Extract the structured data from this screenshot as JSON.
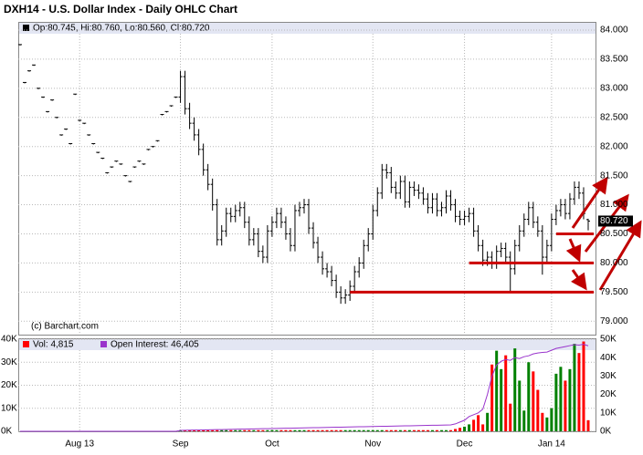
{
  "chart_data": [
    {
      "type": "ohlc",
      "title": "DXH14 - U.S. Dollar Index - Daily OHLC Chart",
      "legend": "Op:80.745, Hi:80.760, Lo:80.560, Cl:80.720",
      "copyright": "(c) Barchart.com",
      "last_label": "80.720",
      "color": "#000000",
      "grid": true,
      "categories": [
        null,
        null,
        null,
        null,
        null,
        null,
        null,
        null,
        null,
        null,
        null,
        null,
        null,
        "Aug 13",
        null,
        null,
        null,
        null,
        null,
        null,
        null,
        null,
        null,
        null,
        null,
        null,
        null,
        null,
        null,
        null,
        null,
        null,
        null,
        null,
        null,
        "Sep",
        null,
        null,
        null,
        null,
        null,
        null,
        null,
        null,
        null,
        null,
        null,
        null,
        null,
        null,
        null,
        null,
        null,
        null,
        null,
        "Oct",
        null,
        null,
        null,
        null,
        null,
        null,
        null,
        null,
        null,
        null,
        null,
        null,
        null,
        null,
        null,
        null,
        null,
        null,
        null,
        null,
        null,
        "Nov",
        null,
        null,
        null,
        null,
        null,
        null,
        null,
        null,
        null,
        null,
        null,
        null,
        null,
        null,
        null,
        null,
        null,
        null,
        null,
        "Dec",
        null,
        null,
        null,
        null,
        null,
        null,
        null,
        null,
        null,
        null,
        null,
        null,
        null,
        null,
        null,
        null,
        null,
        null,
        "Jan 14",
        null,
        null,
        null,
        null,
        null,
        null,
        null,
        null
      ],
      "open": [
        83.75,
        83.1,
        83.3,
        83.4,
        83.0,
        82.85,
        82.6,
        82.8,
        82.5,
        82.2,
        82.3,
        82.05,
        82.9,
        82.45,
        82.4,
        82.2,
        82.05,
        81.9,
        81.8,
        81.55,
        81.65,
        81.75,
        81.7,
        81.5,
        81.4,
        81.65,
        81.75,
        81.7,
        81.95,
        82.0,
        82.1,
        82.55,
        82.6,
        82.7,
        82.85,
        82.85,
        83.2,
        82.65,
        82.4,
        82.2,
        81.95,
        81.6,
        81.35,
        81.0,
        80.4,
        80.55,
        80.85,
        80.8,
        80.9,
        80.95,
        80.7,
        80.4,
        80.5,
        80.2,
        80.1,
        80.55,
        80.7,
        80.85,
        80.7,
        80.5,
        80.3,
        80.9,
        80.95,
        81.0,
        80.6,
        80.35,
        80.1,
        79.9,
        79.85,
        79.7,
        79.5,
        79.4,
        79.45,
        79.6,
        79.85,
        80.0,
        80.3,
        80.5,
        80.9,
        81.2,
        81.6,
        81.55,
        81.3,
        81.2,
        81.4,
        81.05,
        81.3,
        81.25,
        81.2,
        81.1,
        80.95,
        81.1,
        80.9,
        80.95,
        81.15,
        81.0,
        80.8,
        80.75,
        80.8,
        80.85,
        80.55,
        80.3,
        80.05,
        80.1,
        80.0,
        80.2,
        80.25,
        80.1,
        79.9,
        80.3,
        80.55,
        80.75,
        80.95,
        80.7,
        80.55,
        80.1,
        80.3,
        80.75,
        80.9,
        81.0,
        80.85,
        81.1,
        81.3,
        81.2,
        80.745
      ],
      "high": [
        83.75,
        83.1,
        83.3,
        83.4,
        83.0,
        82.85,
        82.6,
        82.8,
        82.5,
        82.2,
        82.3,
        82.05,
        82.9,
        82.45,
        82.4,
        82.2,
        82.05,
        81.9,
        81.8,
        81.55,
        81.65,
        81.75,
        81.7,
        81.5,
        81.4,
        81.65,
        81.75,
        81.7,
        81.95,
        82.0,
        82.1,
        82.55,
        82.6,
        82.7,
        82.85,
        83.3,
        83.3,
        82.75,
        82.5,
        82.3,
        82.05,
        81.7,
        81.45,
        81.1,
        80.65,
        80.95,
        80.95,
        81.0,
        81.05,
        81.05,
        80.8,
        80.6,
        80.6,
        80.3,
        80.65,
        80.8,
        80.95,
        80.95,
        80.8,
        80.6,
        81.0,
        81.05,
        81.1,
        81.1,
        80.7,
        80.45,
        80.2,
        80.0,
        79.95,
        79.8,
        79.6,
        79.55,
        79.7,
        79.95,
        80.1,
        80.4,
        80.6,
        81.0,
        81.3,
        81.7,
        81.7,
        81.65,
        81.4,
        81.5,
        81.5,
        81.4,
        81.4,
        81.35,
        81.3,
        81.2,
        81.2,
        81.2,
        81.05,
        81.25,
        81.25,
        81.1,
        80.9,
        80.9,
        80.95,
        80.95,
        80.65,
        80.4,
        80.2,
        80.2,
        80.3,
        80.35,
        80.35,
        80.2,
        80.4,
        80.65,
        80.85,
        81.05,
        81.05,
        80.8,
        80.65,
        80.4,
        80.85,
        81.0,
        81.1,
        81.1,
        81.2,
        81.4,
        81.4,
        81.3,
        80.76
      ],
      "low": [
        83.75,
        83.1,
        83.3,
        83.4,
        83.0,
        82.85,
        82.6,
        82.8,
        82.5,
        82.2,
        82.3,
        82.05,
        82.9,
        82.45,
        82.4,
        82.2,
        82.05,
        81.9,
        81.8,
        81.55,
        81.65,
        81.75,
        81.7,
        81.5,
        81.4,
        81.65,
        81.75,
        81.7,
        81.95,
        82.0,
        82.1,
        82.55,
        82.6,
        82.7,
        82.85,
        82.75,
        82.55,
        82.3,
        82.1,
        81.85,
        81.5,
        81.25,
        80.9,
        80.3,
        80.3,
        80.45,
        80.7,
        80.7,
        80.8,
        80.6,
        80.3,
        80.3,
        80.1,
        80.0,
        80.0,
        80.45,
        80.6,
        80.6,
        80.4,
        80.2,
        80.2,
        80.8,
        80.85,
        80.5,
        80.25,
        80.0,
        79.8,
        79.75,
        79.6,
        79.4,
        79.3,
        79.3,
        79.35,
        79.5,
        79.75,
        79.9,
        80.2,
        80.4,
        80.8,
        81.1,
        81.45,
        81.2,
        81.1,
        81.1,
        80.95,
        80.95,
        81.15,
        81.1,
        81.0,
        80.85,
        80.85,
        80.8,
        80.8,
        80.85,
        80.9,
        80.7,
        80.65,
        80.65,
        80.7,
        80.45,
        80.2,
        79.95,
        79.95,
        79.9,
        79.9,
        80.1,
        80.0,
        79.5,
        79.8,
        80.2,
        80.45,
        80.65,
        80.6,
        80.45,
        79.8,
        80.0,
        80.2,
        80.65,
        80.8,
        80.75,
        80.75,
        81.0,
        81.1,
        80.75,
        80.56
      ],
      "close": [
        83.75,
        83.1,
        83.3,
        83.4,
        83.0,
        82.85,
        82.6,
        82.8,
        82.5,
        82.2,
        82.3,
        82.05,
        82.9,
        82.45,
        82.4,
        82.2,
        82.05,
        81.9,
        81.8,
        81.55,
        81.65,
        81.75,
        81.7,
        81.5,
        81.4,
        81.65,
        81.75,
        81.7,
        81.95,
        82.0,
        82.1,
        82.55,
        82.6,
        82.7,
        82.85,
        83.2,
        82.65,
        82.4,
        82.2,
        81.95,
        81.6,
        81.35,
        81.0,
        80.4,
        80.55,
        80.85,
        80.8,
        80.9,
        80.95,
        80.7,
        80.4,
        80.5,
        80.2,
        80.1,
        80.55,
        80.7,
        80.85,
        80.7,
        80.5,
        80.3,
        80.9,
        80.95,
        81.0,
        80.6,
        80.35,
        80.1,
        79.9,
        79.85,
        79.7,
        79.5,
        79.4,
        79.45,
        79.6,
        79.85,
        80.0,
        80.3,
        80.5,
        80.9,
        81.2,
        81.6,
        81.55,
        81.3,
        81.2,
        81.4,
        81.05,
        81.3,
        81.25,
        81.2,
        81.1,
        80.95,
        81.1,
        80.9,
        80.95,
        81.15,
        81.0,
        80.8,
        80.75,
        80.8,
        80.85,
        80.55,
        80.3,
        80.05,
        80.1,
        80.0,
        80.2,
        80.25,
        80.1,
        79.9,
        80.3,
        80.55,
        80.75,
        80.95,
        80.7,
        80.55,
        80.1,
        80.3,
        80.75,
        80.9,
        81.0,
        80.85,
        81.1,
        81.3,
        81.2,
        80.85,
        80.72
      ],
      "levels": {
        "color": "#cc0000",
        "values": [
          80.5,
          80.0,
          79.5
        ],
        "start": [
          117,
          98,
          72
        ]
      },
      "ylim": [
        78.77,
        84.14
      ],
      "yticks": [
        {
          "value": 79.0,
          "label": "79.000"
        },
        {
          "value": 79.5,
          "label": "79.500"
        },
        {
          "value": 80.0,
          "label": "80.000"
        },
        {
          "value": 80.5,
          "label": "80.500"
        },
        {
          "value": 81.0,
          "label": "81.000"
        },
        {
          "value": 81.5,
          "label": "81.500"
        },
        {
          "value": 82.0,
          "label": "82.000"
        },
        {
          "value": 82.5,
          "label": "82.500"
        },
        {
          "value": 83.0,
          "label": "83.000"
        },
        {
          "value": 83.5,
          "label": "83.500"
        },
        {
          "value": 84.0,
          "label": "84.000"
        }
      ]
    },
    {
      "type": "bar",
      "grid": true,
      "series": [
        {
          "name": "Vol",
          "legend_text": "Vol: 4,815",
          "color": "#ff0000",
          "up_color": "#008000",
          "down_color": "#ff0000",
          "values": [
            0,
            0,
            0,
            0,
            0,
            0,
            0,
            0,
            0,
            0,
            0,
            0,
            0,
            0,
            0,
            0,
            0,
            0,
            0,
            0,
            0,
            0,
            0,
            0,
            0,
            0,
            0,
            0,
            0,
            0,
            0,
            0,
            0,
            0,
            0,
            500,
            500,
            500,
            500,
            500,
            500,
            500,
            500,
            500,
            500,
            500,
            500,
            500,
            500,
            500,
            500,
            500,
            500,
            500,
            500,
            500,
            500,
            500,
            500,
            500,
            500,
            500,
            500,
            500,
            500,
            500,
            500,
            500,
            500,
            500,
            500,
            500,
            500,
            500,
            500,
            500,
            500,
            500,
            500,
            500,
            500,
            500,
            500,
            500,
            500,
            500,
            500,
            500,
            500,
            500,
            500,
            500,
            500,
            500,
            500,
            1000,
            1500,
            2000,
            3000,
            5000,
            7000,
            3000,
            8000,
            29000,
            35000,
            27000,
            33000,
            12000,
            36000,
            22000,
            9000,
            30000,
            26000,
            18000,
            8000,
            6000,
            10000,
            25000,
            28000,
            22000,
            27000,
            38000,
            34000,
            39000,
            4815
          ]
        },
        {
          "name": "Open Interest",
          "legend_text": "Open Interest: 46,405",
          "type": "line",
          "axis": "y2",
          "color": "#9933cc",
          "values": [
            0,
            0,
            0,
            0,
            0,
            0,
            0,
            0,
            0,
            0,
            0,
            0,
            0,
            0,
            0,
            0,
            0,
            0,
            0,
            0,
            0,
            0,
            0,
            0,
            0,
            0,
            0,
            0,
            0,
            0,
            0,
            0,
            0,
            0,
            0,
            500,
            550,
            600,
            650,
            700,
            750,
            800,
            850,
            900,
            950,
            1000,
            1050,
            1100,
            1150,
            1200,
            1250,
            1300,
            1350,
            1400,
            1450,
            1500,
            1550,
            1600,
            1650,
            1700,
            1750,
            1800,
            1850,
            1900,
            1950,
            2000,
            2050,
            2100,
            2150,
            2200,
            2250,
            2300,
            2350,
            2400,
            2450,
            2500,
            2550,
            2600,
            2650,
            2700,
            2750,
            2800,
            2850,
            2900,
            2950,
            3000,
            3050,
            3100,
            3150,
            3200,
            3250,
            3300,
            3350,
            3400,
            3450,
            4000,
            5000,
            6000,
            8000,
            9000,
            10000,
            12000,
            20000,
            30000,
            36000,
            38000,
            39000,
            38500,
            40000,
            39500,
            40500,
            41000,
            42000,
            42500,
            42800,
            43000,
            44000,
            45000,
            45500,
            46000,
            46500,
            47000,
            46800,
            47200,
            46405
          ]
        }
      ],
      "ylim": [
        0,
        40000
      ],
      "yticks": [
        {
          "value": 0,
          "label": "0K"
        },
        {
          "value": 10000,
          "label": "10K"
        },
        {
          "value": 20000,
          "label": "20K"
        },
        {
          "value": 30000,
          "label": "30K"
        },
        {
          "value": 40000,
          "label": "40K"
        }
      ],
      "y2lim": [
        0,
        50000
      ],
      "y2ticks": [
        {
          "value": 0,
          "label": "0K"
        },
        {
          "value": 10000,
          "label": "10K"
        },
        {
          "value": 20000,
          "label": "20K"
        },
        {
          "value": 30000,
          "label": "30K"
        },
        {
          "value": 40000,
          "label": "40K"
        },
        {
          "value": 50000,
          "label": "50K"
        }
      ]
    }
  ]
}
